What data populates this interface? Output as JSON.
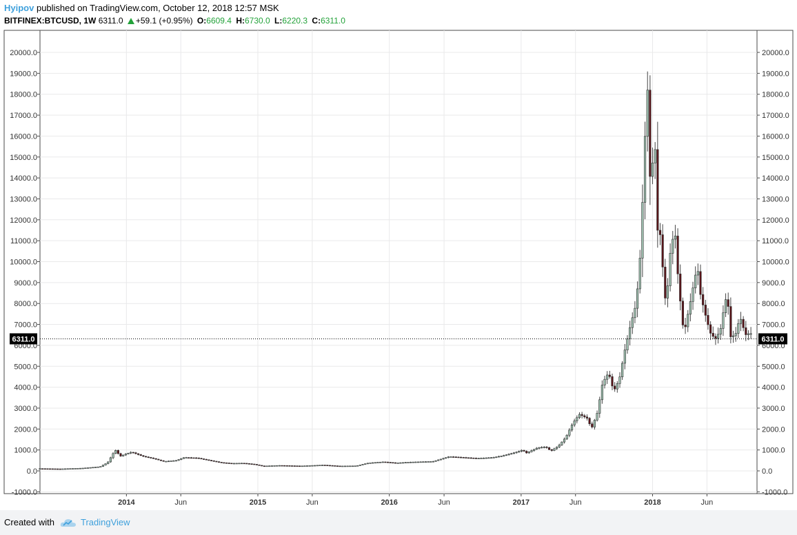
{
  "header": {
    "author": "Hyipov",
    "published": "published on TradingView.com, October 12, 2018 12:57 MSK",
    "symbol": "BITFINEX:BTCUSD, 1W",
    "last": "6311.0",
    "change": "+59.1 (+0.95%)",
    "o_label": "O:",
    "o": "6609.4",
    "h_label": "H:",
    "h": "6730.0",
    "l_label": "L:",
    "l": "6220.3",
    "c_label": "C:",
    "c": "6311.0"
  },
  "footer": {
    "created": "Created with",
    "brand": "TradingView"
  },
  "colors": {
    "up": "#9fc1b0",
    "down": "#5b1419",
    "wick": "#444444",
    "grid": "#e9e9ea",
    "accent": "#3ea0dc"
  },
  "chart_data": {
    "type": "candlestick",
    "ylim": [
      -1000,
      20000
    ],
    "y_ticks": [
      "20000.0",
      "19000.0",
      "18000.0",
      "17000.0",
      "16000.0",
      "15000.0",
      "14000.0",
      "13000.0",
      "12000.0",
      "11000.0",
      "10000.0",
      "9000.0",
      "8000.0",
      "7000.0",
      "6000.0",
      "5000.0",
      "4000.0",
      "3000.0",
      "2000.0",
      "1000.0",
      "0.0",
      "-1000.0"
    ],
    "x_ticks": [
      {
        "label": "2014",
        "bold": true,
        "date": "2014-01-01"
      },
      {
        "label": "Jun",
        "bold": false,
        "date": "2014-06-01"
      },
      {
        "label": "2015",
        "bold": true,
        "date": "2015-01-01"
      },
      {
        "label": "Jun",
        "bold": false,
        "date": "2015-06-01"
      },
      {
        "label": "2016",
        "bold": true,
        "date": "2016-01-01"
      },
      {
        "label": "Jun",
        "bold": false,
        "date": "2016-06-01"
      },
      {
        "label": "2017",
        "bold": true,
        "date": "2017-01-01"
      },
      {
        "label": "Jun",
        "bold": false,
        "date": "2017-06-01"
      },
      {
        "label": "2018",
        "bold": true,
        "date": "2018-01-01"
      },
      {
        "label": "Jun",
        "bold": false,
        "date": "2018-06-01"
      }
    ],
    "x_range": [
      "2013-05-06",
      "2018-10-18"
    ],
    "last_price": "6311.0",
    "series_keypoints": [
      [
        "2013-05-06",
        110
      ],
      [
        "2013-07-01",
        95
      ],
      [
        "2013-09-01",
        130
      ],
      [
        "2013-10-20",
        200
      ],
      [
        "2013-11-10",
        400
      ],
      [
        "2013-11-24",
        800
      ],
      [
        "2013-12-01",
        1000
      ],
      [
        "2013-12-15",
        700
      ],
      [
        "2013-12-29",
        800
      ],
      [
        "2014-01-15",
        900
      ],
      [
        "2014-02-15",
        700
      ],
      [
        "2014-03-15",
        600
      ],
      [
        "2014-04-15",
        450
      ],
      [
        "2014-05-20",
        500
      ],
      [
        "2014-06-10",
        640
      ],
      [
        "2014-07-15",
        620
      ],
      [
        "2014-08-20",
        500
      ],
      [
        "2014-09-20",
        400
      ],
      [
        "2014-10-20",
        360
      ],
      [
        "2014-11-20",
        370
      ],
      [
        "2014-12-20",
        320
      ],
      [
        "2015-01-15",
        230
      ],
      [
        "2015-03-01",
        260
      ],
      [
        "2015-05-01",
        235
      ],
      [
        "2015-07-01",
        280
      ],
      [
        "2015-08-15",
        230
      ],
      [
        "2015-10-01",
        240
      ],
      [
        "2015-11-05",
        380
      ],
      [
        "2015-12-15",
        430
      ],
      [
        "2016-01-20",
        380
      ],
      [
        "2016-03-01",
        420
      ],
      [
        "2016-05-01",
        450
      ],
      [
        "2016-06-15",
        680
      ],
      [
        "2016-07-15",
        650
      ],
      [
        "2016-09-01",
        600
      ],
      [
        "2016-10-15",
        640
      ],
      [
        "2016-11-15",
        740
      ],
      [
        "2016-12-20",
        900
      ],
      [
        "2017-01-05",
        1000
      ],
      [
        "2017-01-15",
        850
      ],
      [
        "2017-02-15",
        1100
      ],
      [
        "2017-03-10",
        1150
      ],
      [
        "2017-03-25",
        950
      ],
      [
        "2017-04-15",
        1200
      ],
      [
        "2017-05-05",
        1600
      ],
      [
        "2017-05-25",
        2300
      ],
      [
        "2017-06-12",
        2700
      ],
      [
        "2017-07-05",
        2500
      ],
      [
        "2017-07-15",
        2000
      ],
      [
        "2017-08-01",
        2800
      ],
      [
        "2017-08-15",
        4200
      ],
      [
        "2017-09-01",
        4700
      ],
      [
        "2017-09-15",
        3800
      ],
      [
        "2017-10-01",
        4400
      ],
      [
        "2017-10-15",
        5700
      ],
      [
        "2017-11-01",
        7000
      ],
      [
        "2017-11-15",
        7900
      ],
      [
        "2017-11-25",
        9500
      ],
      [
        "2017-12-01",
        11500
      ],
      [
        "2017-12-10",
        15500
      ],
      [
        "2017-12-17",
        18900
      ],
      [
        "2017-12-24",
        14000
      ],
      [
        "2017-12-31",
        14500
      ],
      [
        "2018-01-07",
        16000
      ],
      [
        "2018-01-14",
        11500
      ],
      [
        "2018-01-21",
        11500
      ],
      [
        "2018-01-28",
        10000
      ],
      [
        "2018-02-04",
        8200
      ],
      [
        "2018-02-11",
        8600
      ],
      [
        "2018-02-18",
        10300
      ],
      [
        "2018-02-25",
        11000
      ],
      [
        "2018-03-04",
        11500
      ],
      [
        "2018-03-11",
        9600
      ],
      [
        "2018-03-18",
        8300
      ],
      [
        "2018-03-25",
        7000
      ],
      [
        "2018-04-01",
        6800
      ],
      [
        "2018-04-15",
        8000
      ],
      [
        "2018-04-29",
        9300
      ],
      [
        "2018-05-06",
        9700
      ],
      [
        "2018-05-13",
        8500
      ],
      [
        "2018-05-27",
        7500
      ],
      [
        "2018-06-10",
        6600
      ],
      [
        "2018-06-24",
        6300
      ],
      [
        "2018-07-08",
        6700
      ],
      [
        "2018-07-22",
        8200
      ],
      [
        "2018-07-29",
        8100
      ],
      [
        "2018-08-05",
        6400
      ],
      [
        "2018-08-19",
        6500
      ],
      [
        "2018-08-26",
        7000
      ],
      [
        "2018-09-02",
        7300
      ],
      [
        "2018-09-16",
        6500
      ],
      [
        "2018-09-30",
        6600
      ],
      [
        "2018-10-07",
        6311
      ]
    ]
  }
}
